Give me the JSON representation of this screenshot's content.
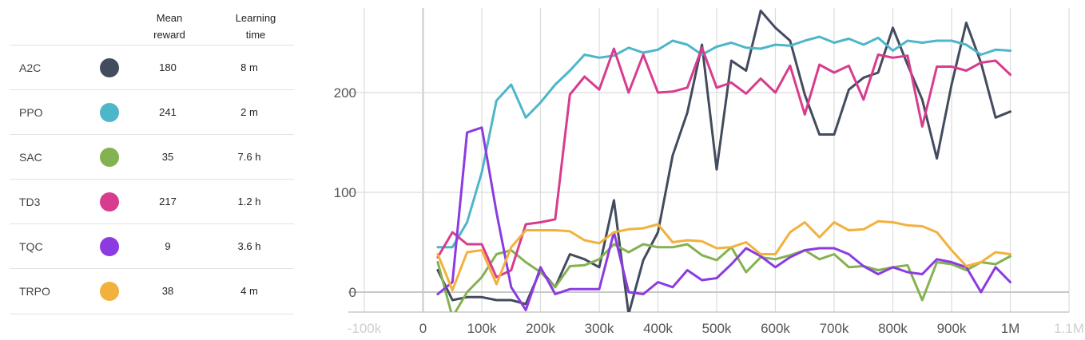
{
  "table": {
    "header_reward": "Mean\nreward",
    "header_time": "Learning\ntime",
    "rows": [
      {
        "algo": "A2C",
        "color": "#434b5e",
        "reward": "180",
        "time": "8 m"
      },
      {
        "algo": "PPO",
        "color": "#4eb6c9",
        "reward": "241",
        "time": "2 m"
      },
      {
        "algo": "SAC",
        "color": "#84b250",
        "reward": "35",
        "time": "7.6 h"
      },
      {
        "algo": "TD3",
        "color": "#d83c8e",
        "reward": "217",
        "time": "1.2 h"
      },
      {
        "algo": "TQC",
        "color": "#8b3be0",
        "reward": "9",
        "time": "3.6 h"
      },
      {
        "algo": "TRPO",
        "color": "#f2b13d",
        "reward": "38",
        "time": "4 m"
      }
    ]
  },
  "chart_data": {
    "type": "line",
    "xlim": [
      -100000,
      1100000
    ],
    "ylim": [
      -20,
      280
    ],
    "x_ticks": [
      -100000,
      0,
      100000,
      200000,
      300000,
      400000,
      500000,
      600000,
      700000,
      800000,
      900000,
      1000000,
      1100000
    ],
    "x_tick_labels": [
      "-100k",
      "0",
      "100k",
      "200k",
      "300k",
      "400k",
      "500k",
      "600k",
      "700k",
      "800k",
      "900k",
      "1M",
      "1.1M"
    ],
    "y_ticks": [
      0,
      100,
      200
    ],
    "grid": true,
    "x": [
      25000,
      50000,
      75000,
      100000,
      125000,
      150000,
      175000,
      200000,
      225000,
      250000,
      275000,
      300000,
      325000,
      350000,
      375000,
      400000,
      425000,
      450000,
      475000,
      500000,
      525000,
      550000,
      575000,
      600000,
      625000,
      650000,
      675000,
      700000,
      725000,
      750000,
      775000,
      800000,
      825000,
      850000,
      875000,
      900000,
      925000,
      950000,
      975000,
      1000000
    ],
    "series": [
      {
        "name": "A2C",
        "color": "#434b5e",
        "values": [
          22,
          -8,
          -5,
          -5,
          -8,
          -8,
          -12,
          22,
          5,
          38,
          33,
          25,
          92,
          -22,
          32,
          60,
          137,
          180,
          248,
          123,
          232,
          222,
          282,
          265,
          252,
          198,
          158,
          158,
          203,
          215,
          220,
          265,
          228,
          193,
          134,
          208,
          270,
          230,
          175,
          181
        ]
      },
      {
        "name": "PPO",
        "color": "#4eb6c9",
        "values": [
          45,
          45,
          70,
          120,
          192,
          208,
          175,
          190,
          208,
          222,
          238,
          235,
          237,
          245,
          240,
          243,
          252,
          248,
          238,
          246,
          250,
          245,
          244,
          248,
          247,
          252,
          256,
          250,
          254,
          248,
          255,
          242,
          252,
          250,
          252,
          252,
          248,
          238,
          243,
          242
        ]
      },
      {
        "name": "SAC",
        "color": "#84b250",
        "values": [
          30,
          -25,
          0,
          15,
          38,
          42,
          30,
          20,
          5,
          26,
          27,
          33,
          48,
          40,
          48,
          45,
          45,
          48,
          37,
          32,
          45,
          20,
          35,
          33,
          37,
          42,
          33,
          38,
          25,
          26,
          22,
          25,
          27,
          -8,
          30,
          28,
          22,
          30,
          28,
          36
        ]
      },
      {
        "name": "TD3",
        "color": "#d83c8e",
        "values": [
          35,
          60,
          48,
          48,
          15,
          22,
          68,
          70,
          73,
          198,
          216,
          203,
          244,
          200,
          238,
          200,
          201,
          205,
          245,
          205,
          210,
          199,
          214,
          200,
          227,
          178,
          228,
          220,
          227,
          193,
          238,
          235,
          237,
          166,
          226,
          226,
          222,
          230,
          232,
          218
        ]
      },
      {
        "name": "TQC",
        "color": "#8b3be0",
        "values": [
          -2,
          10,
          160,
          165,
          80,
          5,
          -18,
          25,
          -2,
          3,
          3,
          3,
          60,
          0,
          -2,
          10,
          5,
          22,
          12,
          14,
          28,
          44,
          36,
          25,
          35,
          42,
          44,
          44,
          38,
          26,
          18,
          25,
          20,
          18,
          33,
          30,
          25,
          0,
          25,
          10
        ]
      },
      {
        "name": "TRPO",
        "color": "#f2b13d",
        "values": [
          38,
          2,
          40,
          42,
          8,
          45,
          62,
          62,
          62,
          61,
          52,
          49,
          60,
          63,
          64,
          68,
          50,
          52,
          51,
          44,
          45,
          50,
          38,
          38,
          60,
          70,
          55,
          70,
          62,
          63,
          71,
          70,
          67,
          66,
          60,
          42,
          26,
          30,
          40,
          38
        ]
      }
    ]
  }
}
